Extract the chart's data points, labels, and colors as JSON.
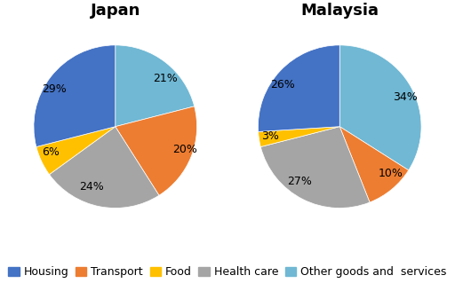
{
  "japan_values": [
    21,
    20,
    24,
    6,
    29
  ],
  "malaysia_values": [
    34,
    10,
    27,
    3,
    26
  ],
  "japan_labels": [
    "21%",
    "20%",
    "24%",
    "6%",
    "29%"
  ],
  "malaysia_labels": [
    "34%",
    "10%",
    "27%",
    "3%",
    "26%"
  ],
  "categories": [
    "Housing",
    "Transport",
    "Food",
    "Health care",
    "Other goods and  services"
  ],
  "colors": [
    "#70B8D4",
    "#ED7D31",
    "#A5A5A5",
    "#FFC000",
    "#4472C4"
  ],
  "title_japan": "Japan",
  "title_malaysia": "Malaysia",
  "title_fontsize": 13,
  "label_fontsize": 9,
  "legend_fontsize": 9,
  "background_color": "#FFFFFF",
  "japan_startangle": 90,
  "malaysia_startangle": 90
}
